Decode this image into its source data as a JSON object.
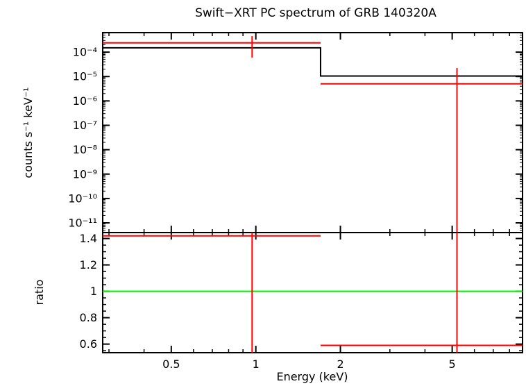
{
  "title": "Swift−XRT PC spectrum of GRB 140320A",
  "chart_data": {
    "type": "line",
    "title": "Swift−XRT PC spectrum of GRB 140320A",
    "xlabel": "Energy (keV)",
    "x_scale": "log",
    "x_range": [
      0.285,
      8.9
    ],
    "x_major_ticks": [
      {
        "value": 0.5,
        "label": "0.5"
      },
      {
        "value": 1,
        "label": "1"
      },
      {
        "value": 2,
        "label": "2"
      },
      {
        "value": 5,
        "label": "5"
      }
    ],
    "x_minor_ticks": [
      0.3,
      0.4,
      0.6,
      0.7,
      0.8,
      0.9,
      3,
      4,
      6,
      7,
      8
    ],
    "colors": {
      "model": "#000000",
      "data": "#ff0000",
      "reference": "#00ee00"
    },
    "panels": [
      {
        "name": "counts-spectrum",
        "ylabel": "counts s⁻¹ keV⁻¹",
        "y_scale": "log",
        "y_range": [
          4e-12,
          0.00063
        ],
        "y_major_ticks": [
          {
            "value": 0.0001,
            "label": "10⁻⁴"
          },
          {
            "value": 1e-05,
            "label": "10⁻⁵"
          },
          {
            "value": 1e-06,
            "label": "10⁻⁶"
          },
          {
            "value": 1e-07,
            "label": "10⁻⁷"
          },
          {
            "value": 1e-08,
            "label": "10⁻⁸"
          },
          {
            "value": 1e-09,
            "label": "10⁻⁹"
          },
          {
            "value": 1e-10,
            "label": "10⁻¹⁰"
          },
          {
            "value": 1e-11,
            "label": "10⁻¹¹"
          }
        ],
        "model": {
          "color": "#000000",
          "steps": [
            {
              "x1": 0.285,
              "x2": 1.7,
              "y": 0.00015
            },
            {
              "x1": 1.7,
              "x2": 8.9,
              "y": 1.05e-05
            }
          ]
        },
        "data": {
          "color": "#ff0000",
          "points": [
            {
              "x": 0.97,
              "bin": [
                0.285,
                1.7
              ],
              "y": 0.00024,
              "err_lo": 6e-05,
              "err_hi": 0.00045
            },
            {
              "x": 5.2,
              "bin": [
                1.7,
                8.9
              ],
              "y": 5e-06,
              "err_lo": 4e-12,
              "err_hi": 2.2e-05
            }
          ]
        }
      },
      {
        "name": "ratio",
        "ylabel": "ratio",
        "y_scale": "linear",
        "y_range": [
          0.535,
          1.445
        ],
        "y_minor_step": 0.05,
        "y_major_ticks": [
          {
            "value": 1.4,
            "label": "1.4"
          },
          {
            "value": 1.2,
            "label": "1.2"
          },
          {
            "value": 1,
            "label": "1"
          },
          {
            "value": 0.8,
            "label": "0.8"
          },
          {
            "value": 0.6,
            "label": "0.6"
          }
        ],
        "reference": {
          "color": "#00ee00",
          "y": 1
        },
        "data": {
          "color": "#ff0000",
          "points": [
            {
              "x": 0.97,
              "bin": [
                0.285,
                1.7
              ],
              "y": 1.42,
              "err_lo": 0.5,
              "err_hi": 1.5
            },
            {
              "x": 5.2,
              "bin": [
                1.7,
                8.9
              ],
              "y": 0.59,
              "err_lo": 0.5,
              "err_hi": 1.5
            }
          ]
        }
      }
    ]
  }
}
